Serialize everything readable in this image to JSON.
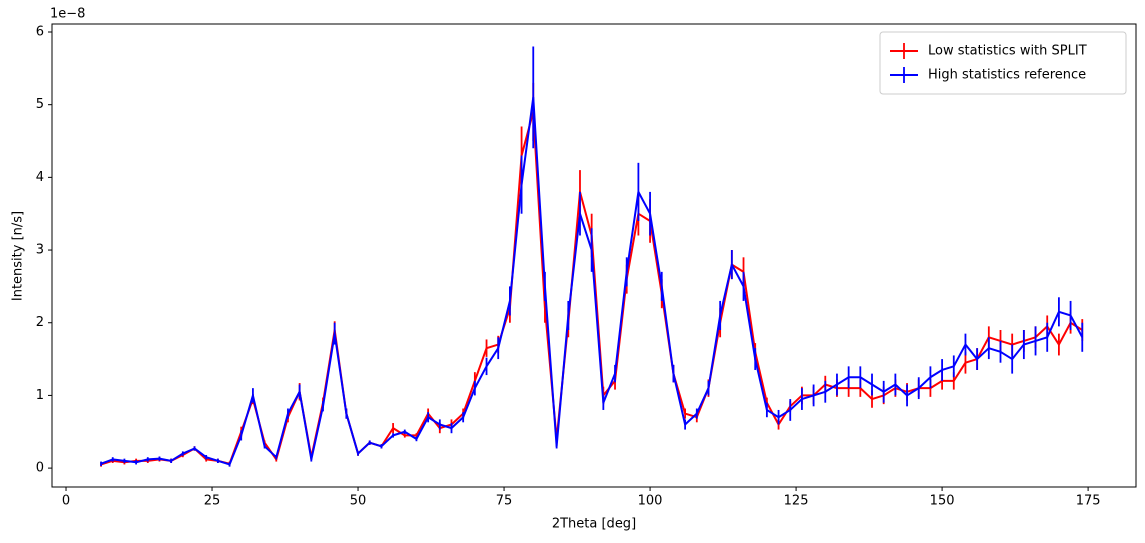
{
  "chart_data": {
    "type": "errorbar-line",
    "x_label": "2Theta [deg]",
    "y_label": "Intensity [n/s]",
    "y_offset_label": "1e−8",
    "xlim": [
      -2.4,
      183.2
    ],
    "xticks": [
      0,
      25,
      50,
      75,
      100,
      125,
      150,
      175
    ],
    "ylim": [
      -0.26,
      6.11
    ],
    "yticks": [
      0,
      1,
      2,
      3,
      4,
      5,
      6
    ],
    "grid": false,
    "legend": "upper right",
    "x": [
      6,
      8,
      10,
      12,
      14,
      16,
      18,
      20,
      22,
      24,
      26,
      28,
      30,
      32,
      34,
      36,
      38,
      40,
      42,
      44,
      46,
      48,
      50,
      52,
      54,
      56,
      58,
      60,
      62,
      64,
      66,
      68,
      70,
      72,
      74,
      76,
      78,
      80,
      82,
      84,
      86,
      88,
      90,
      92,
      94,
      96,
      98,
      100,
      102,
      104,
      106,
      108,
      110,
      112,
      114,
      116,
      118,
      120,
      122,
      124,
      126,
      128,
      130,
      132,
      134,
      136,
      138,
      140,
      142,
      144,
      146,
      148,
      150,
      152,
      154,
      156,
      158,
      160,
      162,
      164,
      166,
      168,
      170,
      172,
      174
    ],
    "series": [
      {
        "name": "Low statistics with SPLIT",
        "color": "#ff0000",
        "values": [
          0.05,
          0.1,
          0.08,
          0.1,
          0.1,
          0.12,
          0.1,
          0.18,
          0.27,
          0.12,
          0.1,
          0.06,
          0.5,
          0.95,
          0.35,
          0.12,
          0.7,
          1.05,
          0.15,
          0.9,
          1.9,
          0.75,
          0.2,
          0.35,
          0.3,
          0.55,
          0.45,
          0.45,
          0.75,
          0.55,
          0.6,
          0.75,
          1.2,
          1.65,
          1.7,
          2.2,
          4.3,
          4.9,
          2.2,
          0.4,
          2.0,
          3.8,
          3.2,
          1.0,
          1.2,
          2.6,
          3.5,
          3.4,
          2.4,
          1.3,
          0.75,
          0.7,
          1.1,
          2.0,
          2.8,
          2.7,
          1.6,
          0.9,
          0.6,
          0.85,
          1.0,
          1.0,
          1.15,
          1.1,
          1.1,
          1.1,
          0.95,
          1.0,
          1.1,
          1.05,
          1.1,
          1.1,
          1.2,
          1.2,
          1.45,
          1.5,
          1.8,
          1.75,
          1.7,
          1.75,
          1.8,
          1.95,
          1.7,
          2.0,
          1.9
        ],
        "errors": [
          0.03,
          0.03,
          0.03,
          0.03,
          0.03,
          0.03,
          0.03,
          0.03,
          0.03,
          0.03,
          0.03,
          0.03,
          0.07,
          0.07,
          0.03,
          0.03,
          0.07,
          0.12,
          0.03,
          0.07,
          0.12,
          0.07,
          0.03,
          0.03,
          0.03,
          0.07,
          0.03,
          0.03,
          0.07,
          0.07,
          0.07,
          0.07,
          0.12,
          0.12,
          0.12,
          0.2,
          0.4,
          0.4,
          0.2,
          0.03,
          0.2,
          0.3,
          0.3,
          0.12,
          0.12,
          0.2,
          0.3,
          0.3,
          0.2,
          0.12,
          0.07,
          0.07,
          0.12,
          0.2,
          0.2,
          0.2,
          0.12,
          0.07,
          0.07,
          0.07,
          0.12,
          0.12,
          0.12,
          0.12,
          0.12,
          0.12,
          0.12,
          0.12,
          0.12,
          0.12,
          0.12,
          0.12,
          0.12,
          0.12,
          0.15,
          0.15,
          0.15,
          0.15,
          0.15,
          0.15,
          0.15,
          0.15,
          0.15,
          0.15,
          0.15
        ]
      },
      {
        "name": "High statistics reference",
        "color": "#0000ff",
        "values": [
          0.06,
          0.12,
          0.1,
          0.08,
          0.12,
          0.13,
          0.1,
          0.2,
          0.27,
          0.15,
          0.1,
          0.05,
          0.45,
          1.0,
          0.3,
          0.15,
          0.75,
          1.05,
          0.12,
          0.85,
          1.85,
          0.75,
          0.2,
          0.35,
          0.3,
          0.45,
          0.5,
          0.4,
          0.7,
          0.6,
          0.55,
          0.7,
          1.1,
          1.4,
          1.65,
          2.3,
          3.9,
          5.1,
          2.5,
          0.3,
          2.1,
          3.5,
          3.0,
          0.9,
          1.3,
          2.7,
          3.8,
          3.5,
          2.5,
          1.3,
          0.6,
          0.75,
          1.1,
          2.1,
          2.8,
          2.5,
          1.5,
          0.8,
          0.7,
          0.8,
          0.95,
          1.0,
          1.05,
          1.15,
          1.25,
          1.25,
          1.15,
          1.05,
          1.15,
          1.0,
          1.1,
          1.25,
          1.35,
          1.4,
          1.7,
          1.5,
          1.65,
          1.6,
          1.5,
          1.7,
          1.75,
          1.8,
          2.15,
          2.1,
          1.8
        ],
        "errors": [
          0.03,
          0.03,
          0.03,
          0.03,
          0.03,
          0.03,
          0.03,
          0.03,
          0.03,
          0.03,
          0.03,
          0.03,
          0.07,
          0.1,
          0.03,
          0.03,
          0.07,
          0.1,
          0.03,
          0.07,
          0.15,
          0.07,
          0.03,
          0.03,
          0.03,
          0.03,
          0.03,
          0.03,
          0.07,
          0.07,
          0.07,
          0.07,
          0.1,
          0.12,
          0.15,
          0.2,
          0.4,
          0.7,
          0.2,
          0.03,
          0.2,
          0.3,
          0.3,
          0.1,
          0.12,
          0.2,
          0.4,
          0.3,
          0.2,
          0.12,
          0.07,
          0.07,
          0.1,
          0.2,
          0.2,
          0.2,
          0.15,
          0.1,
          0.1,
          0.15,
          0.15,
          0.15,
          0.15,
          0.15,
          0.15,
          0.15,
          0.15,
          0.15,
          0.15,
          0.15,
          0.15,
          0.15,
          0.15,
          0.15,
          0.15,
          0.15,
          0.15,
          0.15,
          0.2,
          0.2,
          0.2,
          0.2,
          0.2,
          0.2,
          0.2
        ]
      }
    ]
  }
}
